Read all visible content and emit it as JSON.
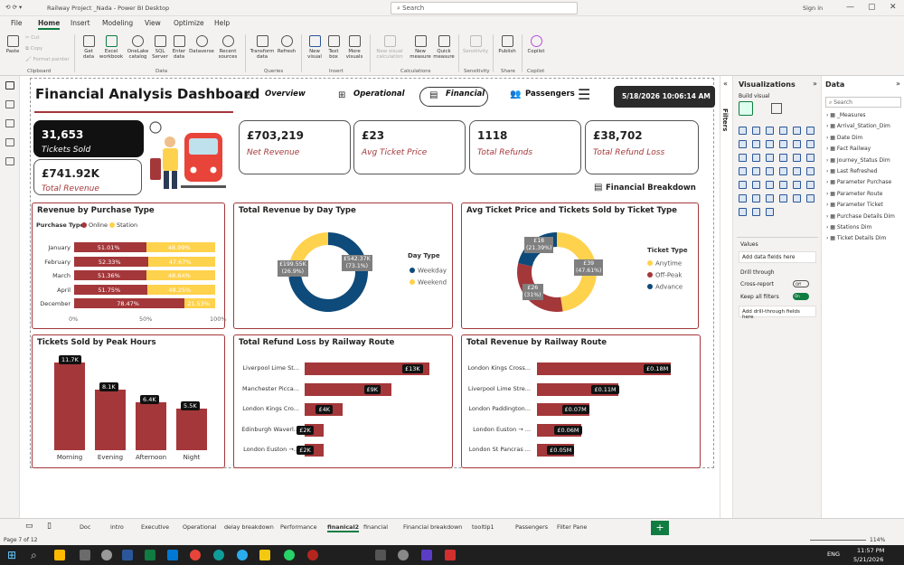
{
  "app": {
    "title": "Railway Project _Nada - Power BI Desktop",
    "search_placeholder": "Search",
    "signin": "Sign in"
  },
  "menu": [
    "File",
    "Home",
    "Insert",
    "Modeling",
    "View",
    "Optimize",
    "Help"
  ],
  "ribbon": {
    "clipboard": {
      "paste": "Paste",
      "cut": "Cut",
      "copy": "Copy",
      "format_painter": "Format painter",
      "group": "Clipboard"
    },
    "data": {
      "get_data": "Get data",
      "excel": "Excel workbook",
      "onelake": "OneLake catalog",
      "sql": "SQL Server",
      "enter": "Enter data",
      "dataverse": "Dataverse",
      "recent": "Recent sources",
      "group": "Data"
    },
    "queries": {
      "transform": "Transform data",
      "refresh": "Refresh",
      "group": "Queries"
    },
    "insert": {
      "new_visual": "New visual",
      "text_box": "Text box",
      "more": "More visuals",
      "group": "Insert"
    },
    "calculations": {
      "new_visual_calc": "New visual calculation",
      "new_measure": "New measure",
      "quick_measure": "Quick measure",
      "group": "Calculations"
    },
    "sensitivity": {
      "label": "Sensitivity",
      "group": "Sensitivity"
    },
    "share": {
      "publish": "Publish",
      "group": "Share"
    },
    "copilot": {
      "label": "Copilot",
      "group": "Copilot"
    }
  },
  "dashboard": {
    "title": "Financial Analysis Dashboard",
    "nav": {
      "overview": "Overview",
      "operational": "Operational",
      "financial": "Financial",
      "passengers": "Passengers"
    },
    "datetime": "5/18/2026 10:06:14 AM",
    "breakdown": "Financial Breakdown",
    "kpis": {
      "tickets_sold": {
        "value": "31,653",
        "label": "Tickets Sold"
      },
      "total_revenue": {
        "value": "£741.92K",
        "label": "Total Revenue"
      },
      "net_revenue": {
        "value": "£703,219",
        "label": "Net Revenue"
      },
      "avg_price": {
        "value": "£23",
        "label": "Avg Ticket Price"
      },
      "refunds": {
        "value": "1118",
        "label": "Total Refunds"
      },
      "refund_loss": {
        "value": "£38,702",
        "label": "Total Refund Loss"
      }
    }
  },
  "chart_data": [
    {
      "type": "bar",
      "title": "Revenue by Purchase Type",
      "legend_title": "Purchase Type",
      "categories": [
        "January",
        "February",
        "March",
        "April",
        "December"
      ],
      "series": [
        {
          "name": "Online",
          "values": [
            51.01,
            52.33,
            51.36,
            51.75,
            78.47
          ],
          "labels": [
            "51.01%",
            "52.33%",
            "51.36%",
            "51.75%",
            "78.47%"
          ],
          "color": "#a4373a"
        },
        {
          "name": "Station",
          "values": [
            48.99,
            47.67,
            48.64,
            48.25,
            21.53
          ],
          "labels": [
            "48.99%",
            "47.67%",
            "48.64%",
            "48.25%",
            "21.53%"
          ],
          "color": "#ffd24d"
        }
      ],
      "xticks": [
        "0%",
        "50%",
        "100%"
      ]
    },
    {
      "type": "pie",
      "title": "Total Revenue by Day Type",
      "legend_title": "Day Type",
      "slices": [
        {
          "name": "Weekday",
          "value": 542.37,
          "label": "£542.37K (73.1%)",
          "color": "#0e4a7a"
        },
        {
          "name": "Weekend",
          "value": 199.55,
          "label": "£199.55K (26.9%)",
          "color": "#ffd24d"
        }
      ]
    },
    {
      "type": "pie",
      "title": "Avg Ticket Price and Tickets Sold by Ticket Type",
      "legend_title": "Ticket Type",
      "slices": [
        {
          "name": "Anytime",
          "value": 47.61,
          "label": "£39 (47.61%)",
          "color": "#ffd24d"
        },
        {
          "name": "Off-Peak",
          "value": 31,
          "label": "£26 (31%)",
          "color": "#a4373a"
        },
        {
          "name": "Advance",
          "value": 21.39,
          "label": "£18 (21.39%)",
          "color": "#0e4a7a"
        }
      ]
    },
    {
      "type": "bar",
      "title": "Tickets Sold by Peak Hours",
      "categories": [
        "Morning",
        "Evening",
        "Afternoon",
        "Night"
      ],
      "values": [
        11.7,
        8.1,
        6.4,
        5.5
      ],
      "labels": [
        "11.7K",
        "8.1K",
        "6.4K",
        "5.5K"
      ]
    },
    {
      "type": "bar",
      "title": "Total Refund Loss by Railway Route",
      "categories": [
        "Liverpool Lime St...",
        "Manchester Picca...",
        "London Kings Cro...",
        "Edinburgh Waverl...",
        "London Euston →..."
      ],
      "values": [
        13,
        9,
        4,
        2,
        2
      ],
      "labels": [
        "£13K",
        "£9K",
        "£4K",
        "£2K",
        "£2K"
      ]
    },
    {
      "type": "bar",
      "title": "Total Revenue by Railway Route",
      "categories": [
        "London Kings Cross...",
        "Liverpool Lime Stre...",
        "London Paddington...",
        "London Euston → ...",
        "London St Pancras ..."
      ],
      "values": [
        0.18,
        0.11,
        0.07,
        0.06,
        0.05
      ],
      "labels": [
        "£0.18M",
        "£0.11M",
        "£0.07M",
        "£0.06M",
        "£0.05M"
      ]
    }
  ],
  "viz_pane": {
    "title": "Visualizations",
    "build": "Build visual",
    "values": "Values",
    "add_fields": "Add data fields here",
    "drill": "Drill through",
    "cross": "Cross-report",
    "cross_state": "Off",
    "keep": "Keep all filters",
    "keep_state": "On",
    "add_drill": "Add drill-through fields here"
  },
  "filters_label": "Filters",
  "data_pane": {
    "title": "Data",
    "search_placeholder": "Search",
    "fields": [
      "_Measures",
      "Arrival_Station_Dim",
      "Date Dim",
      "Fact Railway",
      "Journey_Status Dim",
      "Last Refreshed",
      "Parameter Purchase",
      "Parameter Route",
      "Parameter Ticket",
      "Purchase Details Dim",
      "Stations Dim",
      "Ticket Details Dim"
    ]
  },
  "tabs": [
    "Doc",
    "intro",
    "Executive",
    "Operational",
    "delay breakdown",
    "Performance",
    "finanical2",
    "financial",
    "Financial breakdown",
    "tooltip1",
    "Passengers",
    "Filter Pane"
  ],
  "active_tab": "finanical2",
  "status": {
    "page": "Page 7 of 12",
    "zoom": "114%"
  },
  "taskbar": {
    "lang": "ENG",
    "time": "11:57 PM",
    "date": "5/21/2026"
  }
}
